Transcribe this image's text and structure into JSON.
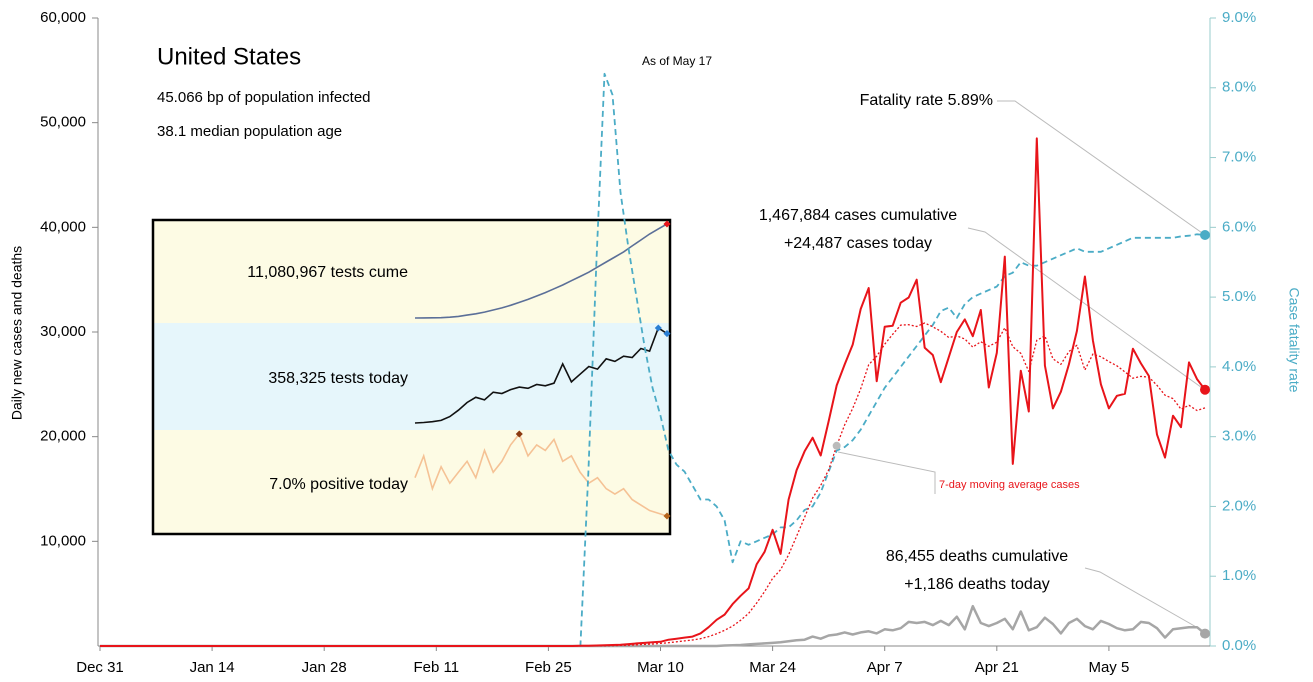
{
  "chart_data": {
    "type": "line",
    "title": "United States",
    "subtitle": [
      "45.066 bp of population infected",
      "38.1 median population age"
    ],
    "note": "As of May 17",
    "ylabel": "Daily new cases and deaths",
    "y2label": "Case fatality rate",
    "categories": [
      "Dec 31",
      null,
      null,
      null,
      null,
      null,
      null,
      null,
      null,
      null,
      null,
      null,
      null,
      null,
      "Jan 14",
      null,
      null,
      null,
      null,
      null,
      null,
      null,
      null,
      null,
      null,
      null,
      null,
      null,
      "Jan 28",
      null,
      null,
      null,
      null,
      null,
      null,
      null,
      null,
      null,
      null,
      null,
      null,
      null,
      "Feb 11",
      null,
      null,
      null,
      null,
      null,
      null,
      null,
      null,
      null,
      null,
      null,
      null,
      null,
      "Feb 25",
      null,
      null,
      null,
      null,
      null,
      null,
      null,
      null,
      null,
      null,
      null,
      null,
      null,
      "Mar 10",
      null,
      null,
      null,
      null,
      null,
      null,
      null,
      null,
      null,
      null,
      null,
      null,
      null,
      "Mar 24",
      null,
      null,
      null,
      null,
      null,
      null,
      null,
      null,
      null,
      null,
      null,
      null,
      null,
      "Apr 7",
      null,
      null,
      null,
      null,
      null,
      null,
      null,
      null,
      null,
      null,
      null,
      null,
      null,
      "Apr 21",
      null,
      null,
      null,
      null,
      null,
      null,
      null,
      null,
      null,
      null,
      null,
      null,
      null,
      "May 5",
      null,
      null,
      null,
      null,
      null,
      null,
      null,
      null,
      null,
      null,
      null,
      null
    ],
    "ylim": [
      0,
      60000
    ],
    "yticks": [
      {
        "value": 10000,
        "label": "10,000"
      },
      {
        "value": 20000,
        "label": "20,000"
      },
      {
        "value": 30000,
        "label": "30,000"
      },
      {
        "value": 40000,
        "label": "40,000"
      },
      {
        "value": 50000,
        "label": "50,000"
      },
      {
        "value": 60000,
        "label": "60,000"
      }
    ],
    "y2lim": [
      0,
      9
    ],
    "y2ticks": [
      {
        "value": 0,
        "label": "0.0%"
      },
      {
        "value": 1,
        "label": "1.0%"
      },
      {
        "value": 2,
        "label": "2.0%"
      },
      {
        "value": 3,
        "label": "3.0%"
      },
      {
        "value": 4,
        "label": "4.0%"
      },
      {
        "value": 5,
        "label": "5.0%"
      },
      {
        "value": 6,
        "label": "6.0%"
      },
      {
        "value": 7,
        "label": "7.0%"
      },
      {
        "value": 8,
        "label": "8.0%"
      },
      {
        "value": 9,
        "label": "9.0%"
      }
    ],
    "series": [
      {
        "color": "#a6a6a6",
        "style": "solid",
        "width": 2.5,
        "annotation": [
          "86,455 deaths cumulative",
          "+1,186 deaths today"
        ],
        "values": [
          0,
          0,
          0,
          0,
          0,
          0,
          0,
          0,
          0,
          0,
          0,
          0,
          0,
          0,
          0,
          0,
          0,
          0,
          0,
          0,
          0,
          0,
          0,
          0,
          0,
          0,
          0,
          0,
          0,
          0,
          0,
          0,
          0,
          0,
          0,
          0,
          0,
          0,
          0,
          0,
          0,
          0,
          0,
          0,
          0,
          0,
          0,
          0,
          0,
          0,
          0,
          0,
          0,
          0,
          0,
          0,
          0,
          0,
          0,
          0,
          0,
          0,
          0,
          0,
          0,
          0,
          0,
          0,
          0,
          0,
          0,
          0,
          0,
          0,
          0,
          0,
          0,
          0,
          50,
          70,
          100,
          150,
          200,
          250,
          300,
          350,
          450,
          550,
          600,
          900,
          700,
          1000,
          1100,
          1300,
          1100,
          1300,
          1400,
          1200,
          1600,
          1500,
          1700,
          2300,
          2200,
          2300,
          2000,
          2400,
          2000,
          2800,
          1600,
          3800,
          2200,
          1900,
          2200,
          2600,
          1600,
          3300,
          1500,
          1800,
          2700,
          2100,
          1200,
          2200,
          2600,
          1900,
          1600,
          2400,
          2100,
          1700,
          1500,
          1600,
          2300,
          2200,
          1700,
          800,
          1600,
          1700,
          1800,
          1800,
          1186
        ]
      },
      {
        "color": "#4bacc6",
        "style": "dashed",
        "width": 1.8,
        "axis": "y2",
        "annotation": [
          "Fatality rate 5.89%"
        ],
        "values": [
          0,
          0,
          0,
          0,
          0,
          0,
          0,
          0,
          0,
          0,
          0,
          0,
          0,
          0,
          0,
          0,
          0,
          0,
          0,
          0,
          0,
          0,
          0,
          0,
          0,
          0,
          0,
          0,
          0,
          0,
          0,
          0,
          0,
          0,
          0,
          0,
          0,
          0,
          0,
          0,
          0,
          0,
          0,
          0,
          0,
          0,
          0,
          0,
          0,
          0,
          0,
          0,
          0,
          0,
          0,
          0,
          0,
          0,
          0,
          0,
          0,
          2.5,
          5.5,
          8.2,
          7.9,
          6.5,
          5.7,
          5.0,
          4.3,
          3.7,
          3.3,
          2.8,
          2.6,
          2.5,
          2.3,
          2.1,
          2.1,
          2.0,
          1.8,
          1.2,
          1.5,
          1.45,
          1.5,
          1.55,
          1.6,
          1.7,
          1.7,
          1.8,
          1.95,
          2.0,
          2.2,
          2.5,
          2.8,
          2.85,
          2.95,
          3.1,
          3.3,
          3.5,
          3.7,
          3.85,
          4.0,
          4.15,
          4.3,
          4.45,
          4.6,
          4.8,
          4.85,
          4.7,
          4.9,
          5.0,
          5.05,
          5.1,
          5.15,
          5.3,
          5.35,
          5.5,
          5.45,
          5.45,
          5.5,
          5.55,
          5.6,
          5.65,
          5.7,
          5.65,
          5.65,
          5.65,
          5.7,
          5.75,
          5.8,
          5.85,
          5.85,
          5.85,
          5.85,
          5.85,
          5.85,
          5.87,
          5.88,
          5.9,
          5.89
        ]
      },
      {
        "color": "#e8141a",
        "style": "solid",
        "width": 2,
        "annotation": [
          "1,467,884 cases cumulative",
          "+24,487 cases today"
        ],
        "values": [
          0,
          0,
          0,
          0,
          0,
          0,
          0,
          0,
          0,
          0,
          0,
          0,
          0,
          0,
          0,
          0,
          0,
          0,
          0,
          0,
          0,
          0,
          0,
          0,
          0,
          0,
          0,
          0,
          0,
          0,
          0,
          0,
          0,
          0,
          0,
          0,
          0,
          0,
          0,
          0,
          0,
          0,
          0,
          0,
          0,
          0,
          0,
          0,
          0,
          0,
          0,
          0,
          0,
          0,
          0,
          0,
          0,
          0,
          0,
          0,
          20,
          30,
          50,
          70,
          100,
          120,
          180,
          250,
          300,
          350,
          400,
          600,
          700,
          800,
          900,
          1200,
          1800,
          2500,
          3000,
          4000,
          4800,
          5500,
          7800,
          9000,
          11100,
          8800,
          14000,
          16800,
          18600,
          19900,
          18200,
          21500,
          24900,
          26900,
          28800,
          32200,
          34200,
          25300,
          30500,
          30600,
          32800,
          33300,
          35000,
          28500,
          27800,
          25200,
          27600,
          30000,
          31200,
          29600,
          32100,
          24700,
          28000,
          37200,
          17400,
          26300,
          22400,
          48500,
          26800,
          22700,
          24300,
          26900,
          30100,
          35300,
          29200,
          25000,
          22700,
          23900,
          24100,
          28400,
          27000,
          25800,
          20200,
          18000,
          22000,
          20900,
          27100,
          25500,
          24487
        ]
      },
      {
        "name": "7-day moving average cases",
        "color": "#e8141a",
        "style": "dotted",
        "width": 1.3,
        "values": [
          0,
          0,
          0,
          0,
          0,
          0,
          0,
          0,
          0,
          0,
          0,
          0,
          0,
          0,
          0,
          0,
          0,
          0,
          0,
          0,
          0,
          0,
          0,
          0,
          0,
          0,
          0,
          0,
          0,
          0,
          0,
          0,
          0,
          0,
          0,
          0,
          0,
          0,
          0,
          0,
          0,
          0,
          0,
          0,
          0,
          0,
          0,
          0,
          0,
          0,
          0,
          0,
          0,
          0,
          0,
          0,
          0,
          0,
          0,
          0,
          5,
          10,
          15,
          25,
          40,
          55,
          80,
          115,
          150,
          195,
          245,
          315,
          400,
          485,
          570,
          700,
          900,
          1170,
          1500,
          1900,
          2460,
          3110,
          4100,
          5200,
          6460,
          7290,
          8710,
          10490,
          12300,
          14140,
          15340,
          16830,
          19130,
          21130,
          22700,
          24570,
          26880,
          27690,
          28830,
          29780,
          30660,
          30700,
          30530,
          30860,
          30500,
          30070,
          29470,
          29630,
          29330,
          28560,
          29070,
          28630,
          29030,
          30400,
          28600,
          27960,
          26230,
          29210,
          29630,
          27440,
          26910,
          28130,
          28730,
          26370,
          27890,
          27640,
          27170,
          26770,
          26190,
          25590,
          25760,
          25690,
          24910,
          23960,
          23640,
          22620,
          23000,
          22500,
          22750
        ]
      }
    ],
    "inset": [
      {
        "label": "11,080,967 tests cume",
        "color": "#5b6f98",
        "values": [
          10000,
          20000,
          30000,
          50000,
          100000,
          200000,
          350000,
          500000,
          700000,
          950000,
          1200000,
          1500000,
          1850000,
          2200000,
          2600000,
          3000000,
          3450000,
          3900000,
          4400000,
          4900000,
          5400000,
          6000000,
          6600000,
          7200000,
          7800000,
          8500000,
          9200000,
          9900000,
          10500000,
          11080967
        ]
      },
      {
        "label": "358,325 tests today",
        "color": "#111111",
        "values": [
          10000,
          12000,
          15000,
          20000,
          35000,
          60000,
          90000,
          110000,
          100000,
          130000,
          125000,
          140000,
          150000,
          145000,
          160000,
          155000,
          165000,
          240000,
          170000,
          200000,
          230000,
          220000,
          260000,
          250000,
          270000,
          265000,
          300000,
          290000,
          380000,
          358325
        ]
      },
      {
        "label": "7.0% positive today",
        "color": "#f5c295",
        "values": [
          14,
          18,
          12,
          16,
          13,
          15,
          17,
          14,
          19,
          15,
          17,
          20,
          22,
          18,
          20,
          19,
          21,
          17,
          18,
          15,
          13,
          14,
          12,
          11,
          12,
          10,
          9,
          8,
          7.5,
          7.0
        ]
      }
    ]
  }
}
